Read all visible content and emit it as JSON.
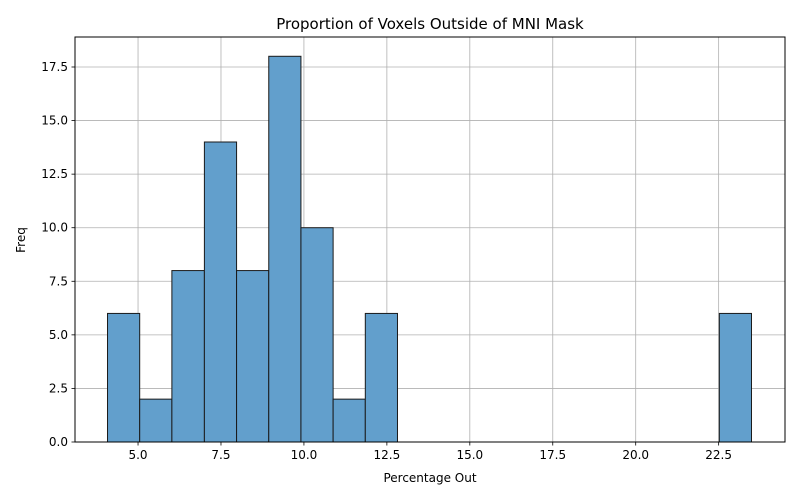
{
  "chart_data": {
    "type": "bar",
    "title": "Proportion of Voxels Outside of MNI Mask",
    "xlabel": "Percentage Out",
    "ylabel": "Freq",
    "xlim": [
      3.1,
      24.5
    ],
    "ylim": [
      0,
      18.9
    ],
    "grid": true,
    "bar_color": "#629fcc",
    "edge_color": "#1a1a1a",
    "bins": [
      {
        "start": 4.08,
        "end": 5.05,
        "count": 6
      },
      {
        "start": 5.05,
        "end": 6.02,
        "count": 2
      },
      {
        "start": 6.02,
        "end": 7.0,
        "count": 8
      },
      {
        "start": 7.0,
        "end": 7.97,
        "count": 14
      },
      {
        "start": 7.97,
        "end": 8.94,
        "count": 8
      },
      {
        "start": 8.94,
        "end": 9.91,
        "count": 18
      },
      {
        "start": 9.91,
        "end": 10.88,
        "count": 10
      },
      {
        "start": 10.88,
        "end": 11.85,
        "count": 2
      },
      {
        "start": 11.85,
        "end": 12.82,
        "count": 6
      },
      {
        "start": 22.52,
        "end": 23.49,
        "count": 6
      }
    ],
    "x_ticks": [
      {
        "value": 5.0,
        "label": "5.0"
      },
      {
        "value": 7.5,
        "label": "7.5"
      },
      {
        "value": 10.0,
        "label": "10.0"
      },
      {
        "value": 12.5,
        "label": "12.5"
      },
      {
        "value": 15.0,
        "label": "15.0"
      },
      {
        "value": 17.5,
        "label": "17.5"
      },
      {
        "value": 20.0,
        "label": "20.0"
      },
      {
        "value": 22.5,
        "label": "22.5"
      }
    ],
    "y_ticks": [
      {
        "value": 0.0,
        "label": "0.0"
      },
      {
        "value": 2.5,
        "label": "2.5"
      },
      {
        "value": 5.0,
        "label": "5.0"
      },
      {
        "value": 7.5,
        "label": "7.5"
      },
      {
        "value": 10.0,
        "label": "10.0"
      },
      {
        "value": 12.5,
        "label": "12.5"
      },
      {
        "value": 15.0,
        "label": "15.0"
      },
      {
        "value": 17.5,
        "label": "17.5"
      }
    ]
  }
}
